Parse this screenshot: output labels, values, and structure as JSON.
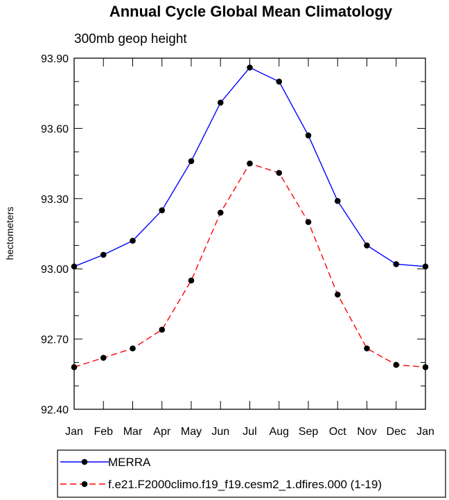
{
  "chart_data": {
    "type": "line",
    "title": "Annual Cycle Global Mean Climatology",
    "subtitle": "300mb geop height",
    "xlabel": "",
    "ylabel": "hectometers",
    "categories": [
      "Jan",
      "Feb",
      "Mar",
      "Apr",
      "May",
      "Jun",
      "Jul",
      "Aug",
      "Sep",
      "Oct",
      "Nov",
      "Dec",
      "Jan"
    ],
    "yticks": [
      "92.40",
      "92.70",
      "93.00",
      "93.30",
      "93.60",
      "93.90"
    ],
    "ylim": [
      92.4,
      93.9
    ],
    "series": [
      {
        "name": "MERRA",
        "values": [
          93.01,
          93.06,
          93.12,
          93.25,
          93.46,
          93.71,
          93.86,
          93.8,
          93.57,
          93.29,
          93.1,
          93.02,
          93.01
        ],
        "color": "#0000ff",
        "dash": "solid"
      },
      {
        "name": "f.e21.F2000climo.f19_f19.cesm2_1.dfires.000 (1-19)",
        "values": [
          92.58,
          92.62,
          92.66,
          92.74,
          92.95,
          93.24,
          93.45,
          93.41,
          93.2,
          92.89,
          92.66,
          92.59,
          92.58
        ],
        "color": "#ff0000",
        "dash": "dashed"
      }
    ],
    "grid": false,
    "legend_position": "bottom"
  }
}
